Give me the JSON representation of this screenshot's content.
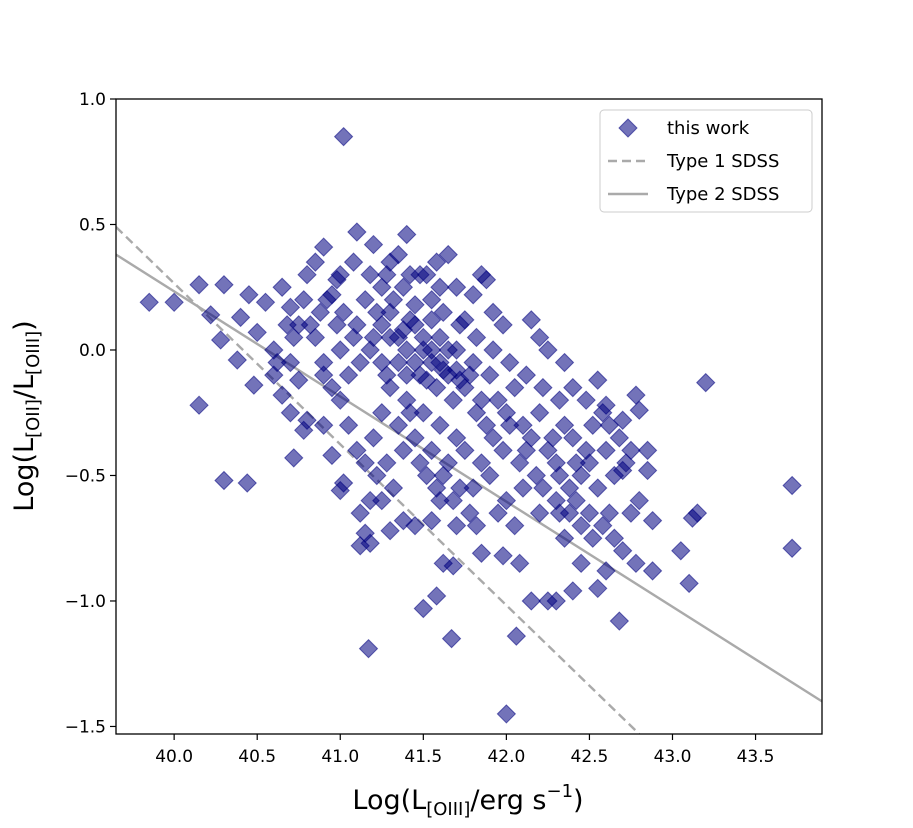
{
  "chart_data": {
    "type": "scatter",
    "title": "",
    "xlabel": {
      "main": "Log(L",
      "sub": "[OIII]",
      "rest": "/erg s",
      "sup": "−1",
      "close": ")"
    },
    "ylabel": {
      "main": "Log(L",
      "sub1": "[OII]",
      "mid": "/L",
      "sub2": "[OIII]",
      "close": ")"
    },
    "xlim": [
      39.65,
      43.9
    ],
    "ylim": [
      -1.53,
      1.0
    ],
    "xticks": [
      40.0,
      40.5,
      41.0,
      41.5,
      42.0,
      42.5,
      43.0,
      43.5
    ],
    "xtick_labels": [
      "40.0",
      "40.5",
      "41.0",
      "41.5",
      "42.0",
      "42.5",
      "43.0",
      "43.5"
    ],
    "yticks": [
      1.0,
      0.5,
      0.0,
      -0.5,
      -1.0,
      -1.5
    ],
    "ytick_labels": [
      "1.0",
      "0.5",
      "0.0",
      "−0.5",
      "−1.0",
      "−1.5"
    ],
    "grid": false,
    "legend_position": "top-right",
    "series": [
      {
        "name": "this work",
        "kind": "scatter",
        "marker": "diamond",
        "color": "#00007f",
        "alpha": 0.55,
        "points": [
          [
            41.02,
            0.85
          ],
          [
            39.85,
            0.19
          ],
          [
            40.0,
            0.19
          ],
          [
            40.15,
            0.26
          ],
          [
            40.3,
            0.26
          ],
          [
            40.22,
            0.14
          ],
          [
            40.28,
            0.04
          ],
          [
            40.38,
            -0.04
          ],
          [
            40.45,
            0.22
          ],
          [
            40.55,
            0.19
          ],
          [
            40.4,
            0.13
          ],
          [
            40.5,
            0.07
          ],
          [
            40.15,
            -0.22
          ],
          [
            40.3,
            -0.52
          ],
          [
            40.44,
            -0.53
          ],
          [
            40.48,
            -0.14
          ],
          [
            40.72,
            -0.43
          ],
          [
            41.02,
            -0.53
          ],
          [
            40.6,
            0.0
          ],
          [
            40.65,
            0.25
          ],
          [
            40.7,
            0.17
          ],
          [
            40.75,
            0.1
          ],
          [
            40.8,
            0.3
          ],
          [
            40.85,
            0.35
          ],
          [
            40.9,
            0.41
          ],
          [
            40.95,
            0.22
          ],
          [
            41.0,
            0.3
          ],
          [
            41.1,
            0.47
          ],
          [
            41.2,
            0.42
          ],
          [
            41.28,
            0.3
          ],
          [
            41.35,
            0.38
          ],
          [
            41.4,
            0.46
          ],
          [
            41.48,
            0.3
          ],
          [
            41.55,
            0.2
          ],
          [
            41.58,
            0.35
          ],
          [
            41.65,
            0.38
          ],
          [
            41.7,
            0.25
          ],
          [
            41.8,
            0.22
          ],
          [
            41.85,
            0.3
          ],
          [
            41.88,
            0.28
          ],
          [
            41.92,
            0.15
          ],
          [
            41.98,
            0.1
          ],
          [
            42.15,
            0.12
          ],
          [
            42.2,
            0.05
          ],
          [
            42.25,
            0.0
          ],
          [
            42.35,
            -0.05
          ],
          [
            42.4,
            -0.15
          ],
          [
            42.48,
            -0.2
          ],
          [
            42.55,
            -0.12
          ],
          [
            42.6,
            -0.22
          ],
          [
            42.7,
            -0.28
          ],
          [
            42.78,
            -0.18
          ],
          [
            42.8,
            -0.24
          ],
          [
            42.85,
            -0.4
          ],
          [
            42.75,
            -0.4
          ],
          [
            42.7,
            -0.48
          ],
          [
            42.85,
            -0.48
          ],
          [
            42.8,
            -0.6
          ],
          [
            42.88,
            -0.68
          ],
          [
            42.75,
            -0.65
          ],
          [
            42.7,
            -0.8
          ],
          [
            42.78,
            -0.85
          ],
          [
            42.88,
            -0.88
          ],
          [
            42.6,
            -0.88
          ],
          [
            42.55,
            -0.95
          ],
          [
            42.68,
            -1.08
          ],
          [
            43.05,
            -0.8
          ],
          [
            43.12,
            -0.67
          ],
          [
            43.15,
            -0.65
          ],
          [
            43.1,
            -0.93
          ],
          [
            43.2,
            -0.13
          ],
          [
            43.72,
            -0.54
          ],
          [
            43.72,
            -0.79
          ],
          [
            42.45,
            -0.85
          ],
          [
            42.4,
            -0.96
          ],
          [
            42.3,
            -1.0
          ],
          [
            42.25,
            -1.0
          ],
          [
            42.15,
            -1.0
          ],
          [
            42.08,
            -0.85
          ],
          [
            42.06,
            -1.14
          ],
          [
            41.98,
            -0.82
          ],
          [
            41.85,
            -0.81
          ],
          [
            41.95,
            -0.65
          ],
          [
            42.0,
            -1.45
          ],
          [
            41.7,
            -0.7
          ],
          [
            41.62,
            -0.85
          ],
          [
            41.68,
            -0.86
          ],
          [
            41.58,
            -0.98
          ],
          [
            41.5,
            -1.03
          ],
          [
            41.67,
            -1.15
          ],
          [
            41.17,
            -1.19
          ],
          [
            41.15,
            -0.73
          ],
          [
            41.12,
            -0.78
          ],
          [
            41.18,
            -0.77
          ],
          [
            41.25,
            -0.6
          ],
          [
            41.3,
            -0.72
          ],
          [
            41.38,
            -0.68
          ],
          [
            41.45,
            -0.7
          ],
          [
            41.55,
            -0.68
          ],
          [
            41.6,
            -0.6
          ],
          [
            41.0,
            -0.56
          ],
          [
            40.95,
            -0.42
          ],
          [
            40.9,
            -0.3
          ],
          [
            40.8,
            -0.28
          ],
          [
            40.78,
            -0.32
          ],
          [
            40.7,
            -0.25
          ],
          [
            40.65,
            -0.18
          ],
          [
            40.6,
            -0.1
          ],
          [
            40.7,
            -0.05
          ],
          [
            40.75,
            -0.12
          ],
          [
            40.85,
            0.05
          ],
          [
            40.9,
            -0.05
          ],
          [
            41.0,
            0.0
          ],
          [
            41.05,
            -0.1
          ],
          [
            41.1,
            0.1
          ],
          [
            41.15,
            0.2
          ],
          [
            41.2,
            0.05
          ],
          [
            41.25,
            -0.05
          ],
          [
            41.3,
            0.15
          ],
          [
            41.35,
            0.05
          ],
          [
            41.4,
            -0.1
          ],
          [
            41.45,
            0.1
          ],
          [
            41.5,
            0.0
          ],
          [
            41.55,
            -0.05
          ],
          [
            41.6,
            0.05
          ],
          [
            41.65,
            -0.1
          ],
          [
            41.7,
            0.0
          ],
          [
            41.75,
            -0.15
          ],
          [
            41.8,
            -0.05
          ],
          [
            41.85,
            -0.2
          ],
          [
            41.9,
            -0.1
          ],
          [
            41.95,
            -0.2
          ],
          [
            42.0,
            -0.25
          ],
          [
            42.05,
            -0.15
          ],
          [
            42.1,
            -0.3
          ],
          [
            42.15,
            -0.35
          ],
          [
            42.2,
            -0.25
          ],
          [
            42.25,
            -0.4
          ],
          [
            42.3,
            -0.45
          ],
          [
            42.35,
            -0.3
          ],
          [
            42.4,
            -0.35
          ],
          [
            42.45,
            -0.5
          ],
          [
            42.5,
            -0.45
          ],
          [
            42.55,
            -0.55
          ],
          [
            42.6,
            -0.4
          ],
          [
            42.65,
            -0.5
          ],
          [
            42.5,
            -0.65
          ],
          [
            42.45,
            -0.7
          ],
          [
            42.35,
            -0.75
          ],
          [
            42.3,
            -0.6
          ],
          [
            42.2,
            -0.65
          ],
          [
            42.1,
            -0.55
          ],
          [
            42.05,
            -0.7
          ],
          [
            42.0,
            -0.6
          ],
          [
            41.9,
            -0.5
          ],
          [
            41.85,
            -0.45
          ],
          [
            41.8,
            -0.55
          ],
          [
            41.75,
            -0.4
          ],
          [
            41.7,
            -0.35
          ],
          [
            41.65,
            -0.45
          ],
          [
            41.6,
            -0.3
          ],
          [
            41.55,
            -0.4
          ],
          [
            41.5,
            -0.25
          ],
          [
            41.45,
            -0.35
          ],
          [
            41.4,
            -0.2
          ],
          [
            41.35,
            -0.3
          ],
          [
            41.3,
            -0.15
          ],
          [
            41.25,
            -0.25
          ],
          [
            41.2,
            -0.35
          ],
          [
            41.15,
            -0.45
          ],
          [
            41.1,
            -0.4
          ],
          [
            41.05,
            -0.3
          ],
          [
            41.0,
            -0.2
          ],
          [
            40.95,
            -0.15
          ],
          [
            40.9,
            -0.1
          ],
          [
            41.25,
            0.1
          ],
          [
            41.3,
            0.05
          ],
          [
            41.35,
            -0.05
          ],
          [
            41.4,
            0.0
          ],
          [
            41.45,
            -0.05
          ],
          [
            41.5,
            0.05
          ],
          [
            41.55,
            0.0
          ],
          [
            41.6,
            -0.05
          ],
          [
            41.65,
            0.0
          ],
          [
            41.7,
            -0.08
          ],
          [
            41.38,
            0.08
          ],
          [
            41.42,
            0.12
          ],
          [
            41.48,
            -0.1
          ],
          [
            41.52,
            -0.12
          ],
          [
            41.58,
            -0.15
          ],
          [
            41.62,
            -0.08
          ],
          [
            41.68,
            -0.2
          ],
          [
            41.72,
            -0.12
          ],
          [
            41.78,
            -0.1
          ],
          [
            41.82,
            -0.25
          ],
          [
            41.88,
            -0.3
          ],
          [
            41.92,
            -0.35
          ],
          [
            41.98,
            -0.4
          ],
          [
            42.02,
            -0.3
          ],
          [
            42.08,
            -0.45
          ],
          [
            42.12,
            -0.4
          ],
          [
            42.18,
            -0.5
          ],
          [
            42.22,
            -0.55
          ],
          [
            42.28,
            -0.35
          ],
          [
            42.32,
            -0.5
          ],
          [
            41.32,
            0.2
          ],
          [
            41.28,
            -0.1
          ],
          [
            41.22,
            0.15
          ],
          [
            41.18,
            0.0
          ],
          [
            41.12,
            -0.05
          ],
          [
            41.08,
            0.05
          ],
          [
            41.02,
            0.15
          ],
          [
            40.98,
            0.1
          ],
          [
            40.92,
            0.2
          ],
          [
            40.88,
            0.15
          ],
          [
            40.82,
            0.1
          ],
          [
            40.78,
            0.2
          ],
          [
            40.72,
            0.05
          ],
          [
            40.68,
            0.1
          ],
          [
            40.62,
            -0.05
          ],
          [
            41.42,
            -0.25
          ],
          [
            41.38,
            -0.4
          ],
          [
            41.48,
            -0.45
          ],
          [
            41.52,
            -0.5
          ],
          [
            41.58,
            -0.55
          ],
          [
            41.62,
            -0.5
          ],
          [
            41.68,
            -0.6
          ],
          [
            41.72,
            -0.55
          ],
          [
            41.78,
            -0.65
          ],
          [
            41.82,
            -0.7
          ],
          [
            41.28,
            -0.45
          ],
          [
            41.32,
            -0.55
          ],
          [
            41.22,
            -0.5
          ],
          [
            41.18,
            -0.6
          ],
          [
            41.12,
            -0.65
          ],
          [
            42.42,
            -0.6
          ],
          [
            42.38,
            -0.65
          ],
          [
            42.52,
            -0.75
          ],
          [
            42.58,
            -0.7
          ],
          [
            42.62,
            -0.65
          ],
          [
            42.65,
            -0.75
          ],
          [
            42.72,
            -0.45
          ],
          [
            42.68,
            -0.35
          ],
          [
            42.62,
            -0.3
          ],
          [
            42.58,
            -0.25
          ],
          [
            42.52,
            -0.3
          ],
          [
            42.48,
            -0.4
          ],
          [
            42.42,
            -0.45
          ],
          [
            42.38,
            -0.55
          ],
          [
            42.32,
            -0.65
          ],
          [
            41.45,
            0.18
          ],
          [
            41.55,
            0.12
          ],
          [
            41.62,
            0.15
          ],
          [
            41.72,
            0.1
          ],
          [
            41.82,
            0.05
          ],
          [
            41.92,
            0.0
          ],
          [
            42.02,
            -0.05
          ],
          [
            42.12,
            -0.1
          ],
          [
            42.22,
            -0.15
          ],
          [
            42.32,
            -0.2
          ],
          [
            40.98,
            0.28
          ],
          [
            41.08,
            0.35
          ],
          [
            41.18,
            0.3
          ],
          [
            41.25,
            0.25
          ],
          [
            41.3,
            0.35
          ],
          [
            41.38,
            0.25
          ],
          [
            41.42,
            0.3
          ],
          [
            41.52,
            0.3
          ],
          [
            41.6,
            0.25
          ],
          [
            41.75,
            0.12
          ]
        ]
      },
      {
        "name": "Type 1 SDSS",
        "kind": "line",
        "style": "dashed",
        "color": "#aaaaaa",
        "points": [
          [
            39.65,
            0.49
          ],
          [
            42.8,
            -1.53
          ]
        ]
      },
      {
        "name": "Type 2 SDSS",
        "kind": "line",
        "style": "solid",
        "color": "#aaaaaa",
        "points": [
          [
            39.65,
            0.38
          ],
          [
            43.9,
            -1.4
          ]
        ]
      }
    ]
  }
}
